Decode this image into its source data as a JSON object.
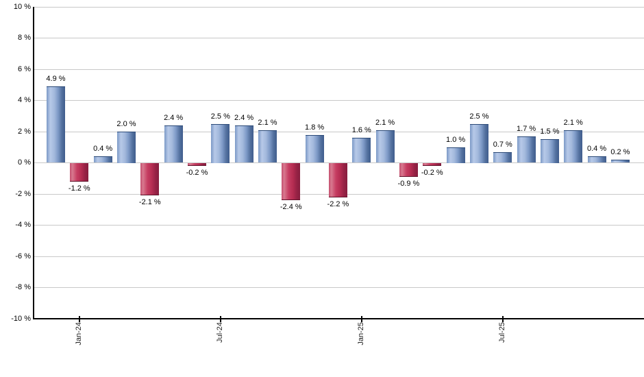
{
  "chart_data": {
    "type": "bar",
    "title": "",
    "xlabel": "",
    "ylabel": "",
    "unit": "%",
    "ylim": [
      -10,
      10
    ],
    "grid": true,
    "y_ticks": [
      10,
      8,
      6,
      4,
      2,
      0,
      -2,
      -4,
      -6,
      -8,
      -10
    ],
    "y_tick_labels": [
      "10 %",
      "8 %",
      "6 %",
      "4 %",
      "2 %",
      "0 %",
      "-2 %",
      "-4 %",
      "-6 %",
      "-8 %",
      "-10 %"
    ],
    "values": [
      4.9,
      -1.2,
      0.4,
      2.0,
      -2.1,
      2.4,
      -0.2,
      2.5,
      2.4,
      2.1,
      -2.4,
      1.8,
      -2.2,
      1.6,
      2.1,
      -0.9,
      -0.2,
      1.0,
      2.5,
      0.7,
      1.7,
      1.5,
      2.1,
      0.4,
      0.2
    ],
    "bar_labels": [
      "4.9 %",
      "-1.2 %",
      "0.4 %",
      "2.0 %",
      "-2.1 %",
      "2.4 %",
      "-0.2 %",
      "2.5 %",
      "2.4 %",
      "2.1 %",
      "-2.4 %",
      "1.8 %",
      "-2.2 %",
      "1.6 %",
      "2.1 %",
      "-0.9 %",
      "-0.2 %",
      "1.0 %",
      "2.5 %",
      "0.7 %",
      "1.7 %",
      "1.5 %",
      "2.1 %",
      "0.4 %",
      "0.2 %"
    ],
    "x_tick_labels": [
      "Jan-24",
      "Jul-24",
      "Jan-25",
      "Jul-25"
    ],
    "x_tick_bar_indices": [
      1,
      7,
      13,
      19
    ],
    "legend": "none",
    "colors": {
      "positive_bar": "#7e9ac7",
      "positive_bar_dark": "#405d8d",
      "positive_bar_light": "#b7c9e8",
      "negative_bar": "#c63e62",
      "negative_bar_dark": "#871d3e",
      "negative_bar_light": "#d8798f",
      "gridline": "#c8c8c8",
      "axis": "#000000",
      "background": "#ffffff"
    }
  }
}
